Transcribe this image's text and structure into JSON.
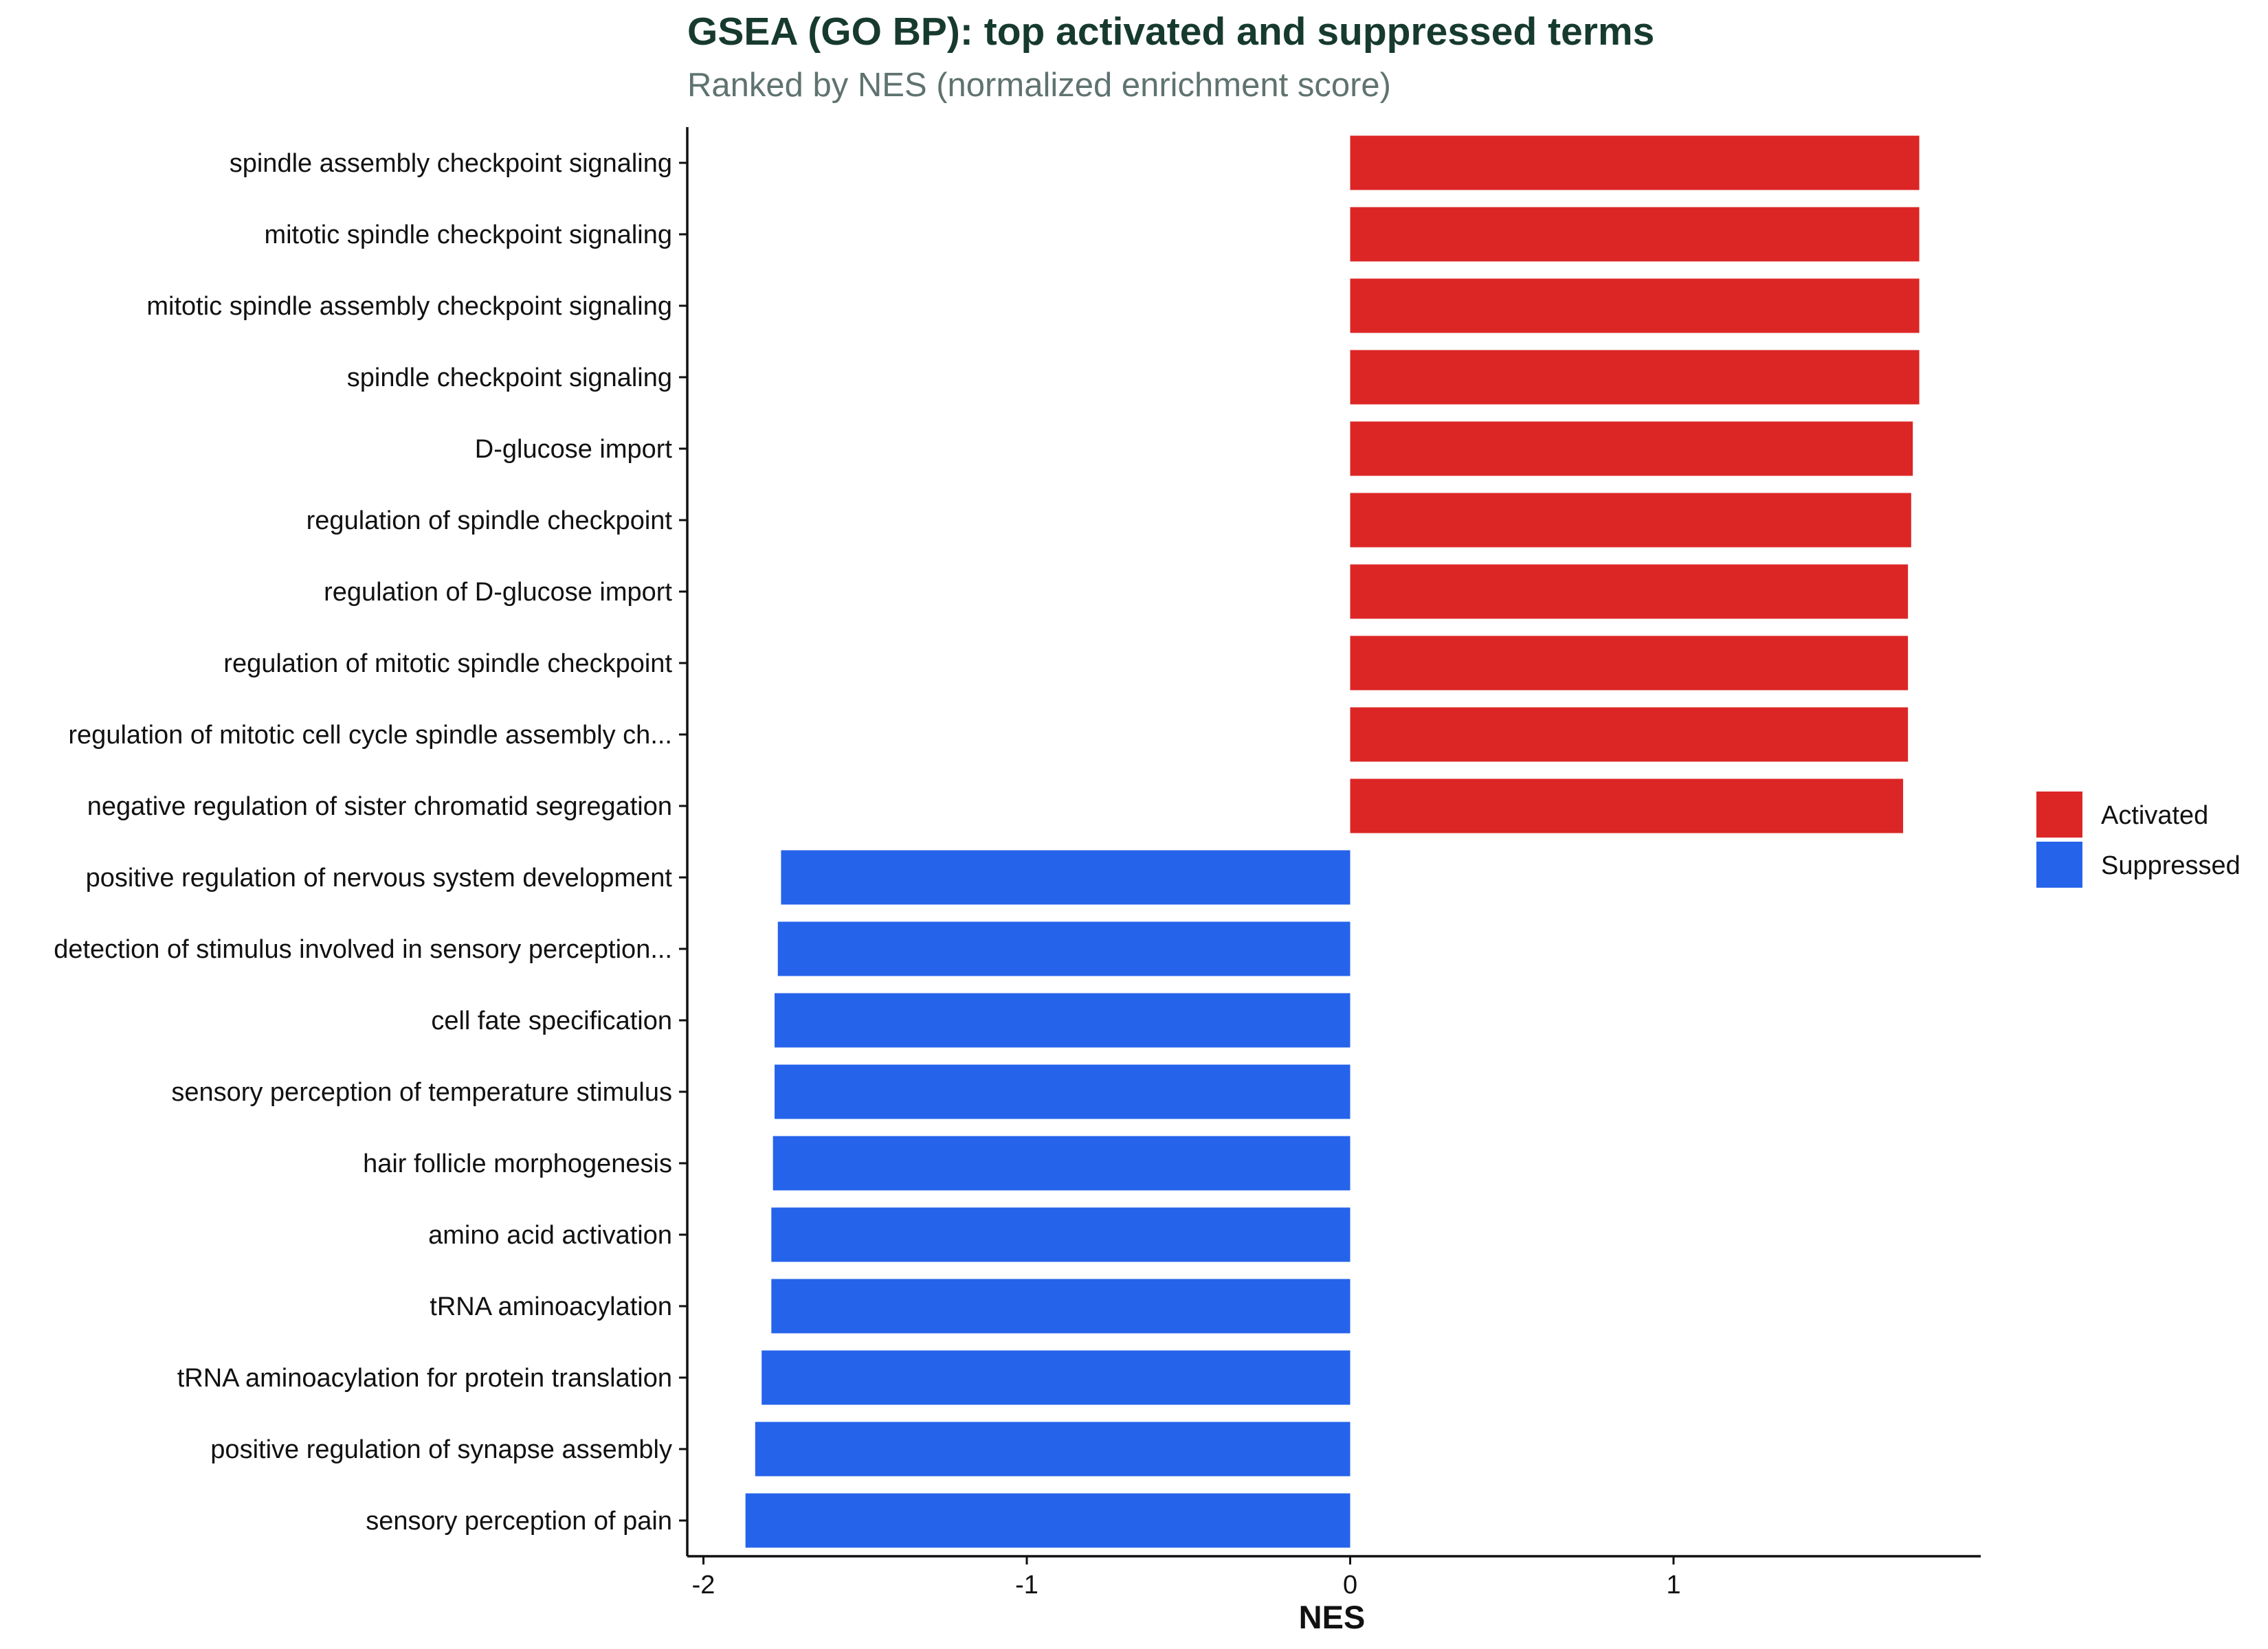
{
  "chart_data": {
    "type": "bar",
    "orientation": "horizontal",
    "title": "GSEA (GO BP): top activated and suppressed terms",
    "subtitle": "Ranked by NES (normalized enrichment score)",
    "xlabel": "NES",
    "ylabel": "",
    "xlim": [
      -2.05,
      1.95
    ],
    "xticks": [
      -2,
      -1,
      0,
      1
    ],
    "xtick_labels": [
      "-2",
      "-1",
      "0",
      "1"
    ],
    "grid": false,
    "legend_position": "right",
    "legend": [
      {
        "label": "Activated",
        "color": "#dc2626"
      },
      {
        "label": "Suppressed",
        "color": "#2563eb"
      }
    ],
    "categories": [
      "spindle assembly checkpoint signaling",
      "mitotic spindle checkpoint signaling",
      "mitotic spindle assembly checkpoint signaling",
      "spindle checkpoint signaling",
      "D-glucose import",
      "regulation of spindle checkpoint",
      "regulation of D-glucose import",
      "regulation of mitotic spindle checkpoint",
      "regulation of mitotic cell cycle spindle assembly ch...",
      "negative regulation of sister chromatid segregation",
      "positive regulation of nervous system development",
      "detection of stimulus involved in sensory perception...",
      "cell fate specification",
      "sensory perception of temperature stimulus",
      "hair follicle morphogenesis",
      "amino acid activation",
      "tRNA aminoacylation",
      "tRNA aminoacylation for protein translation",
      "positive regulation of synapse assembly",
      "sensory perception of pain"
    ],
    "values": [
      1.76,
      1.76,
      1.76,
      1.76,
      1.74,
      1.735,
      1.725,
      1.725,
      1.725,
      1.71,
      -1.76,
      -1.77,
      -1.78,
      -1.78,
      -1.785,
      -1.79,
      -1.79,
      -1.82,
      -1.84,
      -1.87
    ],
    "groups": [
      "Activated",
      "Activated",
      "Activated",
      "Activated",
      "Activated",
      "Activated",
      "Activated",
      "Activated",
      "Activated",
      "Activated",
      "Suppressed",
      "Suppressed",
      "Suppressed",
      "Suppressed",
      "Suppressed",
      "Suppressed",
      "Suppressed",
      "Suppressed",
      "Suppressed",
      "Suppressed"
    ],
    "colors": {
      "title": "#173a2f",
      "subtitle": "#5f7370",
      "axis": "#111111"
    }
  }
}
